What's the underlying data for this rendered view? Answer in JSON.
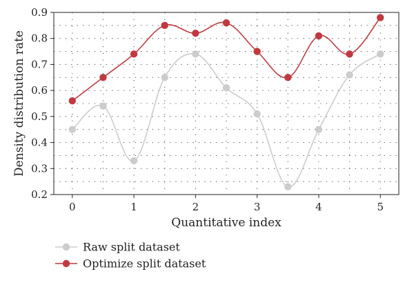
{
  "chart_data": {
    "type": "line",
    "title": "",
    "xlabel": "Quantitative index",
    "ylabel": "Density distribution rate",
    "xlim": [
      -0.3,
      5.3
    ],
    "ylim": [
      0.2,
      0.9
    ],
    "xticks": [
      0,
      1,
      2,
      3,
      4,
      5
    ],
    "yticks": [
      0.2,
      0.3,
      0.4,
      0.5,
      0.6,
      0.7,
      0.8,
      0.9
    ],
    "x": [
      0,
      0.5,
      1,
      1.5,
      2,
      2.5,
      3,
      3.5,
      4,
      4.5,
      5
    ],
    "grid": true,
    "legend_position": "bottom-left",
    "series": [
      {
        "name": "Raw split dataset",
        "color": "#cccccc",
        "values": [
          0.45,
          0.54,
          0.33,
          0.65,
          0.74,
          0.61,
          0.51,
          0.23,
          0.45,
          0.66,
          0.74
        ]
      },
      {
        "name": "Optimize split dataset",
        "color": "#c1393f",
        "values": [
          0.56,
          0.65,
          0.74,
          0.85,
          0.82,
          0.86,
          0.75,
          0.65,
          0.81,
          0.74,
          0.88
        ]
      }
    ]
  }
}
